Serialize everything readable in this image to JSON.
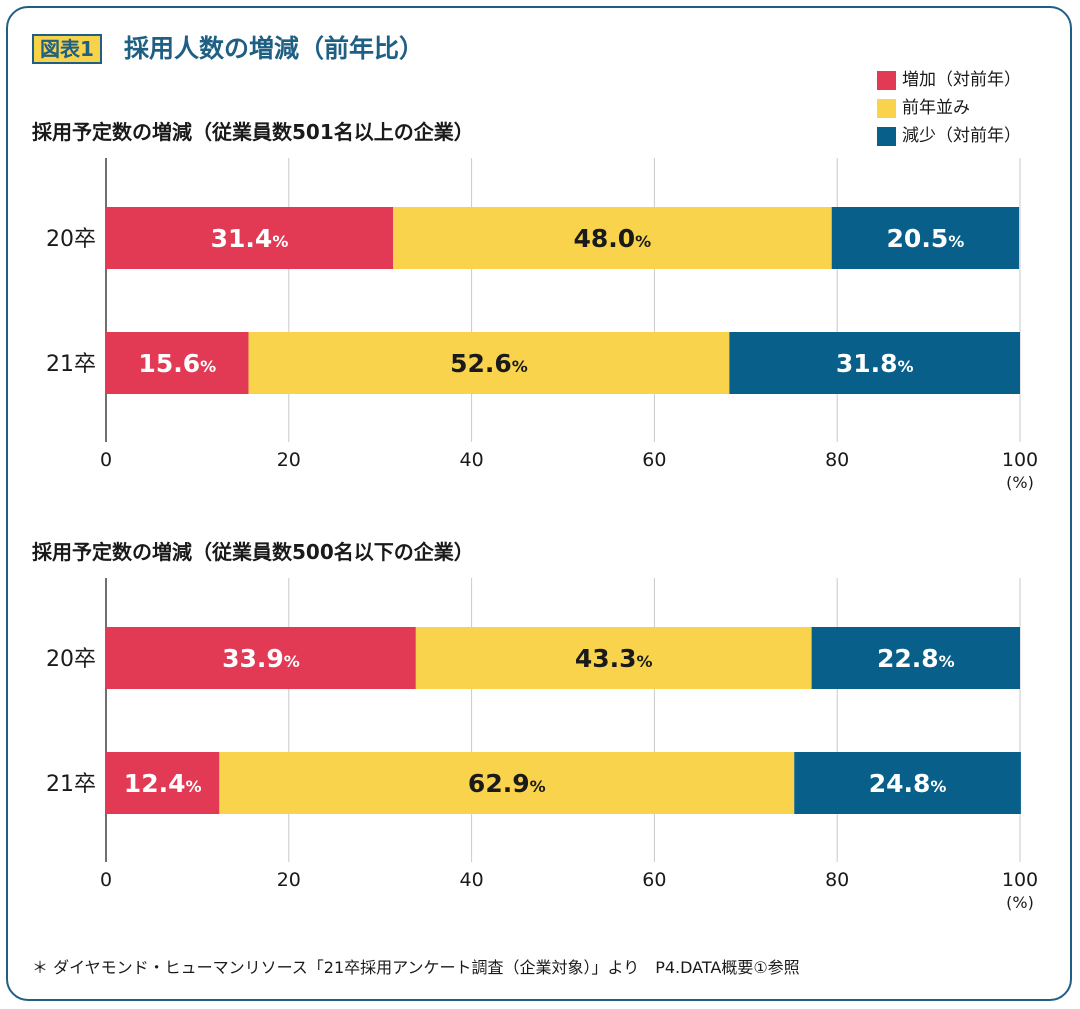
{
  "header": {
    "figure_label": "図表1",
    "title": "採用人数の増減（前年比）"
  },
  "legend": [
    {
      "label": "増加（対前年）",
      "color": "#e23a55"
    },
    {
      "label": "前年並み",
      "color": "#f8d34b"
    },
    {
      "label": "減少（対前年）",
      "color": "#075f8a"
    }
  ],
  "chart_data": [
    {
      "type": "bar",
      "orientation": "horizontal",
      "stacked": true,
      "title": "採用予定数の増減（従業員数501名以上の企業）",
      "categories": [
        "20卒",
        "21卒"
      ],
      "series": [
        {
          "name": "増加（対前年）",
          "values": [
            31.4,
            15.6
          ]
        },
        {
          "name": "前年並み",
          "values": [
            48.0,
            52.6
          ]
        },
        {
          "name": "減少（対前年）",
          "values": [
            20.5,
            31.8
          ]
        }
      ],
      "value_labels": [
        [
          "31.4",
          "48.0",
          "20.5"
        ],
        [
          "15.6",
          "52.6",
          "31.8"
        ]
      ],
      "value_unit": "%",
      "xlim": [
        0,
        100
      ],
      "xticks": [
        "0",
        "20",
        "40",
        "60",
        "80",
        "100"
      ],
      "xunit": "(%)",
      "grid": true
    },
    {
      "type": "bar",
      "orientation": "horizontal",
      "stacked": true,
      "title": "採用予定数の増減（従業員数500名以下の企業）",
      "categories": [
        "20卒",
        "21卒"
      ],
      "series": [
        {
          "name": "増加（対前年）",
          "values": [
            33.9,
            12.4
          ]
        },
        {
          "name": "前年並み",
          "values": [
            43.3,
            62.9
          ]
        },
        {
          "name": "減少（対前年）",
          "values": [
            22.8,
            24.8
          ]
        }
      ],
      "value_labels": [
        [
          "33.9",
          "43.3",
          "22.8"
        ],
        [
          "12.4",
          "62.9",
          "24.8"
        ]
      ],
      "value_unit": "%",
      "xlim": [
        0,
        100
      ],
      "xticks": [
        "0",
        "20",
        "40",
        "60",
        "80",
        "100"
      ],
      "xunit": "(%)",
      "grid": true
    }
  ],
  "footnote": "＊ ダイヤモンド・ヒューマンリソース「21卒採用アンケート調査（企業対象）」より　P4.DATA概要①参照"
}
